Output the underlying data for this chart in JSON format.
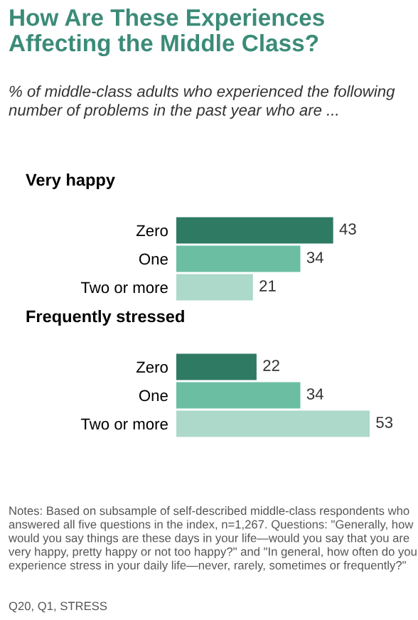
{
  "chart_data": [
    {
      "type": "other",
      "title": "How Are These Experiences Affecting the Middle Class?",
      "subtitle": "% of middle-class adults who experienced the following number of problems in the past year who are ..."
    },
    {
      "type": "bar",
      "orientation": "horizontal",
      "title": "Very happy",
      "categories": [
        "Zero",
        "One",
        "Two or more"
      ],
      "values": [
        43,
        34,
        21
      ],
      "colors": [
        "#2f7a63",
        "#6cbea3",
        "#acd9c9"
      ],
      "data_labels": true
    },
    {
      "type": "bar",
      "orientation": "horizontal",
      "title": "Frequently stressed",
      "categories": [
        "Zero",
        "One",
        "Two or more"
      ],
      "values": [
        22,
        34,
        53
      ],
      "colors": [
        "#2f7a63",
        "#6cbea3",
        "#acd9c9"
      ],
      "data_labels": true,
      "annotations": [
        "Notes: Based on subsample of self-described middle-class respondents who answered all five questions in the index, n=1,267. Questions: \"Generally, how would you say things are these days in your life—would you say that you are very happy, pretty happy or not too happy?\" and \"In general, how often do you experience stress in your daily life—never, rarely, sometimes or frequently?\"",
        "Q20, Q1, STRESS"
      ]
    }
  ]
}
